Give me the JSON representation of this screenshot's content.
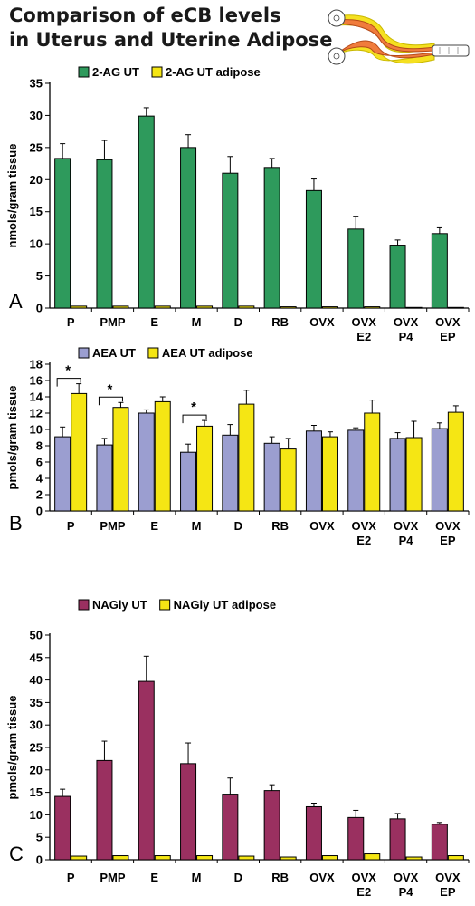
{
  "header": {
    "title_line1": "Comparison of eCB levels",
    "title_line2": "in Uterus and Uterine Adipose"
  },
  "colors": {
    "uterus_fill": "#f07c3c",
    "adipose_fill": "#f5e020"
  },
  "chart_data": [
    {
      "type": "bar",
      "panel": "A",
      "ylabel": "nmols/gram tissue",
      "ylim": [
        0,
        35
      ],
      "yticks": [
        0,
        5,
        10,
        15,
        20,
        25,
        30,
        35
      ],
      "categories": [
        "P",
        "PMP",
        "E",
        "M",
        "D",
        "RB",
        "OVX",
        "OVX E2",
        "OVX P4",
        "OVX EP"
      ],
      "category_labels": [
        [
          "P"
        ],
        [
          "PMP"
        ],
        [
          "E"
        ],
        [
          "M"
        ],
        [
          "D"
        ],
        [
          "RB"
        ],
        [
          "OVX"
        ],
        [
          "OVX",
          "E2"
        ],
        [
          "OVX",
          "P4"
        ],
        [
          "OVX",
          "EP"
        ]
      ],
      "legend_position": "top-left",
      "grid": false,
      "series": [
        {
          "name": "2-AG UT",
          "color": "#2e9a5c",
          "values": [
            23.3,
            23.1,
            29.9,
            25.0,
            21.0,
            21.9,
            18.3,
            12.3,
            9.8,
            11.6
          ],
          "errors": [
            2.3,
            3.0,
            1.3,
            2.0,
            2.6,
            1.4,
            1.8,
            2.0,
            0.8,
            0.9
          ]
        },
        {
          "name": "2-AG UT adipose",
          "color": "#f5e614",
          "values": [
            0.3,
            0.3,
            0.3,
            0.3,
            0.3,
            0.2,
            0.2,
            0.2,
            0.1,
            0.1
          ],
          "errors": [
            0,
            0,
            0,
            0,
            0,
            0,
            0,
            0,
            0,
            0
          ]
        }
      ],
      "significance": []
    },
    {
      "type": "bar",
      "panel": "B",
      "ylabel": "pmols/gram tissue",
      "ylim": [
        0,
        18
      ],
      "yticks": [
        0,
        2,
        4,
        6,
        8,
        10,
        12,
        14,
        16,
        18
      ],
      "categories": [
        "P",
        "PMP",
        "E",
        "M",
        "D",
        "RB",
        "OVX",
        "OVX E2",
        "OVX P4",
        "OVX EP"
      ],
      "category_labels": [
        [
          "P"
        ],
        [
          "PMP"
        ],
        [
          "E"
        ],
        [
          "M"
        ],
        [
          "D"
        ],
        [
          "RB"
        ],
        [
          "OVX"
        ],
        [
          "OVX",
          "E2"
        ],
        [
          "OVX",
          "P4"
        ],
        [
          "OVX",
          "EP"
        ]
      ],
      "legend_position": "top-left",
      "grid": false,
      "series": [
        {
          "name": "AEA UT",
          "color": "#9b9ed0",
          "values": [
            9.1,
            8.1,
            12.0,
            7.2,
            9.3,
            8.3,
            9.8,
            9.9,
            8.9,
            10.1
          ],
          "errors": [
            1.2,
            0.8,
            0.4,
            1.0,
            1.3,
            0.8,
            0.7,
            0.3,
            0.7,
            0.7
          ]
        },
        {
          "name": "AEA UT adipose",
          "color": "#f5e614",
          "values": [
            14.4,
            12.7,
            13.4,
            10.4,
            13.1,
            7.6,
            9.1,
            12.0,
            9.0,
            12.1
          ],
          "errors": [
            1.2,
            0.6,
            0.6,
            0.7,
            1.7,
            1.3,
            0.6,
            1.6,
            2.0,
            0.8
          ]
        }
      ],
      "significance": [
        {
          "category_index": 0,
          "label": "*"
        },
        {
          "category_index": 1,
          "label": "*"
        },
        {
          "category_index": 3,
          "label": "*"
        }
      ]
    },
    {
      "type": "bar",
      "panel": "C",
      "ylabel": "pmols/gram tissue",
      "ylim": [
        0,
        50
      ],
      "yticks": [
        0,
        5,
        10,
        15,
        20,
        25,
        30,
        35,
        40,
        45,
        50
      ],
      "categories": [
        "P",
        "PMP",
        "E",
        "M",
        "D",
        "RB",
        "OVX",
        "OVX E2",
        "OVX P4",
        "OVX EP"
      ],
      "category_labels": [
        [
          "P"
        ],
        [
          "PMP"
        ],
        [
          "E"
        ],
        [
          "M"
        ],
        [
          "D"
        ],
        [
          "RB"
        ],
        [
          "OVX"
        ],
        [
          "OVX",
          "E2"
        ],
        [
          "OVX",
          "P4"
        ],
        [
          "OVX",
          "EP"
        ]
      ],
      "legend_position": "top-left",
      "grid": false,
      "series": [
        {
          "name": "NAGly UT",
          "color": "#9a3060",
          "values": [
            14.1,
            22.1,
            39.7,
            21.4,
            14.6,
            15.4,
            11.8,
            9.4,
            9.1,
            7.9
          ],
          "errors": [
            1.6,
            4.3,
            5.6,
            4.6,
            3.6,
            1.3,
            0.8,
            1.6,
            1.2,
            0.4
          ]
        },
        {
          "name": "NAGly UT adipose",
          "color": "#f5e614",
          "values": [
            0.8,
            0.9,
            0.9,
            0.9,
            0.8,
            0.6,
            0.9,
            1.3,
            0.6,
            0.9
          ],
          "errors": [
            0,
            0,
            0,
            0,
            0,
            0,
            0,
            0,
            0,
            0
          ]
        }
      ],
      "significance": []
    }
  ]
}
